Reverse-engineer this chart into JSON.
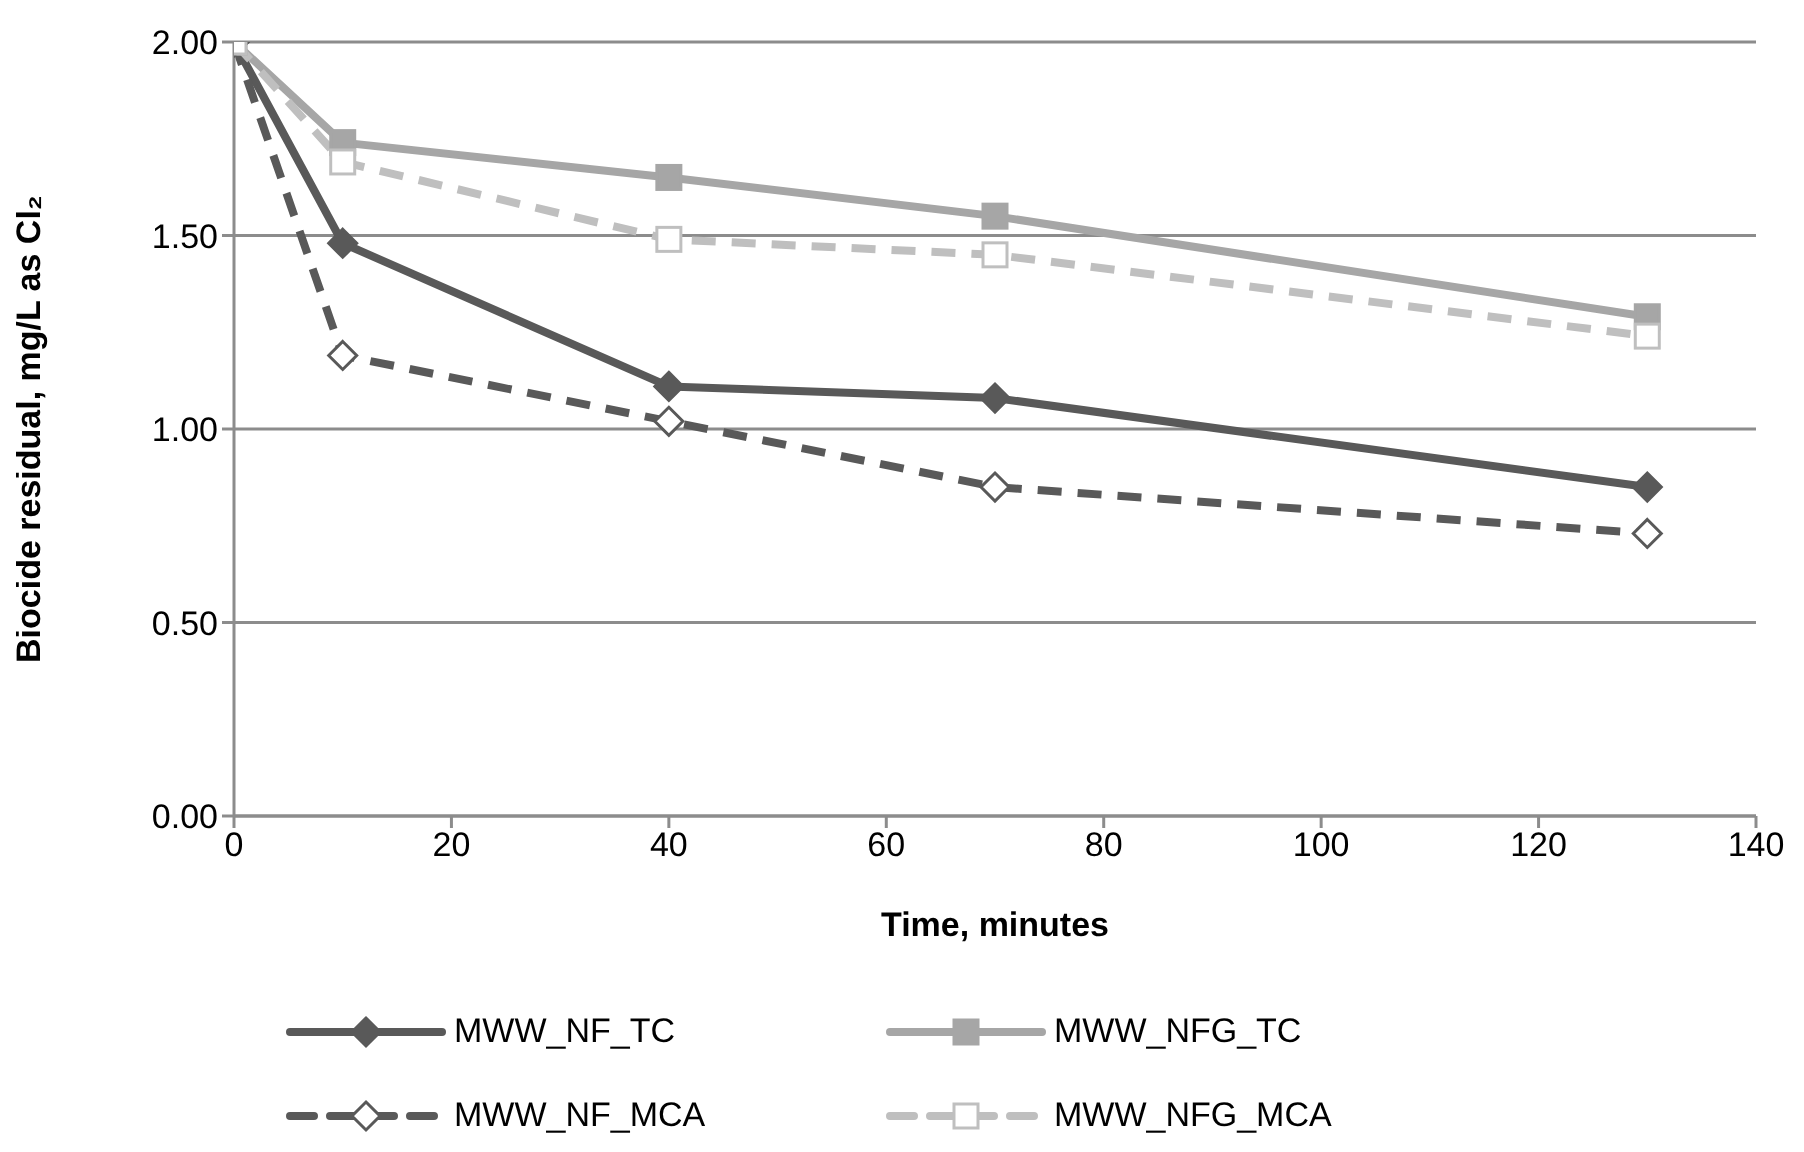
{
  "chart_data": {
    "type": "line",
    "xlabel": "Time, minutes",
    "ylabel": "Biocide residual, mg/L as Cl₂",
    "xlim": [
      0,
      140
    ],
    "xticks": [
      0,
      20,
      40,
      60,
      80,
      100,
      120,
      140
    ],
    "ylim": [
      0,
      2
    ],
    "yticks": [
      {
        "value": 0,
        "label": "0.00"
      },
      {
        "value": 0.5,
        "label": "0.50"
      },
      {
        "value": 1,
        "label": "1.00"
      },
      {
        "value": 1.5,
        "label": "1.50"
      },
      {
        "value": 2,
        "label": "2.00"
      }
    ],
    "grid": "y",
    "legend": "bottom",
    "series": [
      {
        "name": "MWW_NF_TC",
        "color": "#595959",
        "marker": "diamond",
        "line_style": "solid",
        "x": [
          0,
          10,
          40,
          70,
          130
        ],
        "values": [
          2.0,
          1.48,
          1.11,
          1.08,
          0.85
        ]
      },
      {
        "name": "MWW_NFG_TC",
        "color": "#a6a6a6",
        "marker": "square",
        "line_style": "solid",
        "x": [
          0,
          10,
          40,
          70,
          130
        ],
        "values": [
          2.0,
          1.74,
          1.65,
          1.55,
          1.29
        ]
      },
      {
        "name": "MWW_NF_MCA",
        "color": "#595959",
        "marker": "diamond",
        "line_style": "dashed",
        "x": [
          0,
          10,
          40,
          70,
          130
        ],
        "values": [
          2.0,
          1.19,
          1.02,
          0.85,
          0.73
        ]
      },
      {
        "name": "MWW_NFG_MCA",
        "color": "#bfbfbf",
        "marker": "square",
        "line_style": "dashed",
        "x": [
          0,
          10,
          40,
          70,
          130
        ],
        "values": [
          2.0,
          1.69,
          1.49,
          1.45,
          1.24
        ]
      }
    ]
  }
}
